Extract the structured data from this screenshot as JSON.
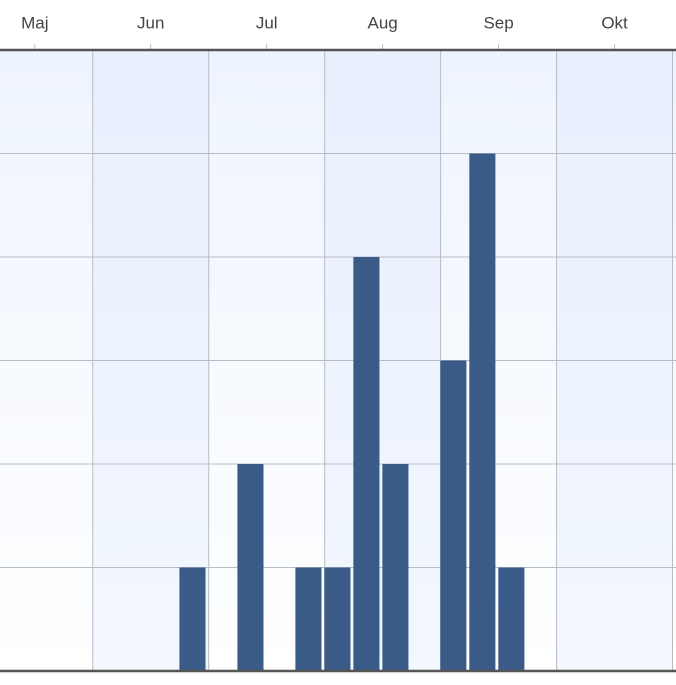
{
  "chart_data": {
    "type": "bar",
    "x": [
      1.36,
      1.86,
      2.36,
      2.61,
      2.86,
      3.11,
      3.61,
      3.86,
      4.11
    ],
    "values": [
      1,
      2,
      1,
      1,
      4,
      2,
      3,
      5,
      1
    ],
    "color": "#3a5b88",
    "xlim": [
      -0.3,
      5.53
    ],
    "xticks": [
      {
        "value": 0,
        "label": "Maj"
      },
      {
        "value": 1,
        "label": "Jun"
      },
      {
        "value": 2,
        "label": "Jul"
      },
      {
        "value": 3,
        "label": "Aug"
      },
      {
        "value": 4,
        "label": "Sep"
      },
      {
        "value": 5,
        "label": "Okt"
      }
    ],
    "xgrid": [
      0.5,
      1.5,
      2.5,
      3.5,
      4.5,
      5.5
    ],
    "ylim": [
      0,
      6
    ],
    "yticks": [
      0,
      1,
      2,
      3,
      4,
      5,
      6
    ],
    "ytick_labels": false,
    "grid": true
  }
}
